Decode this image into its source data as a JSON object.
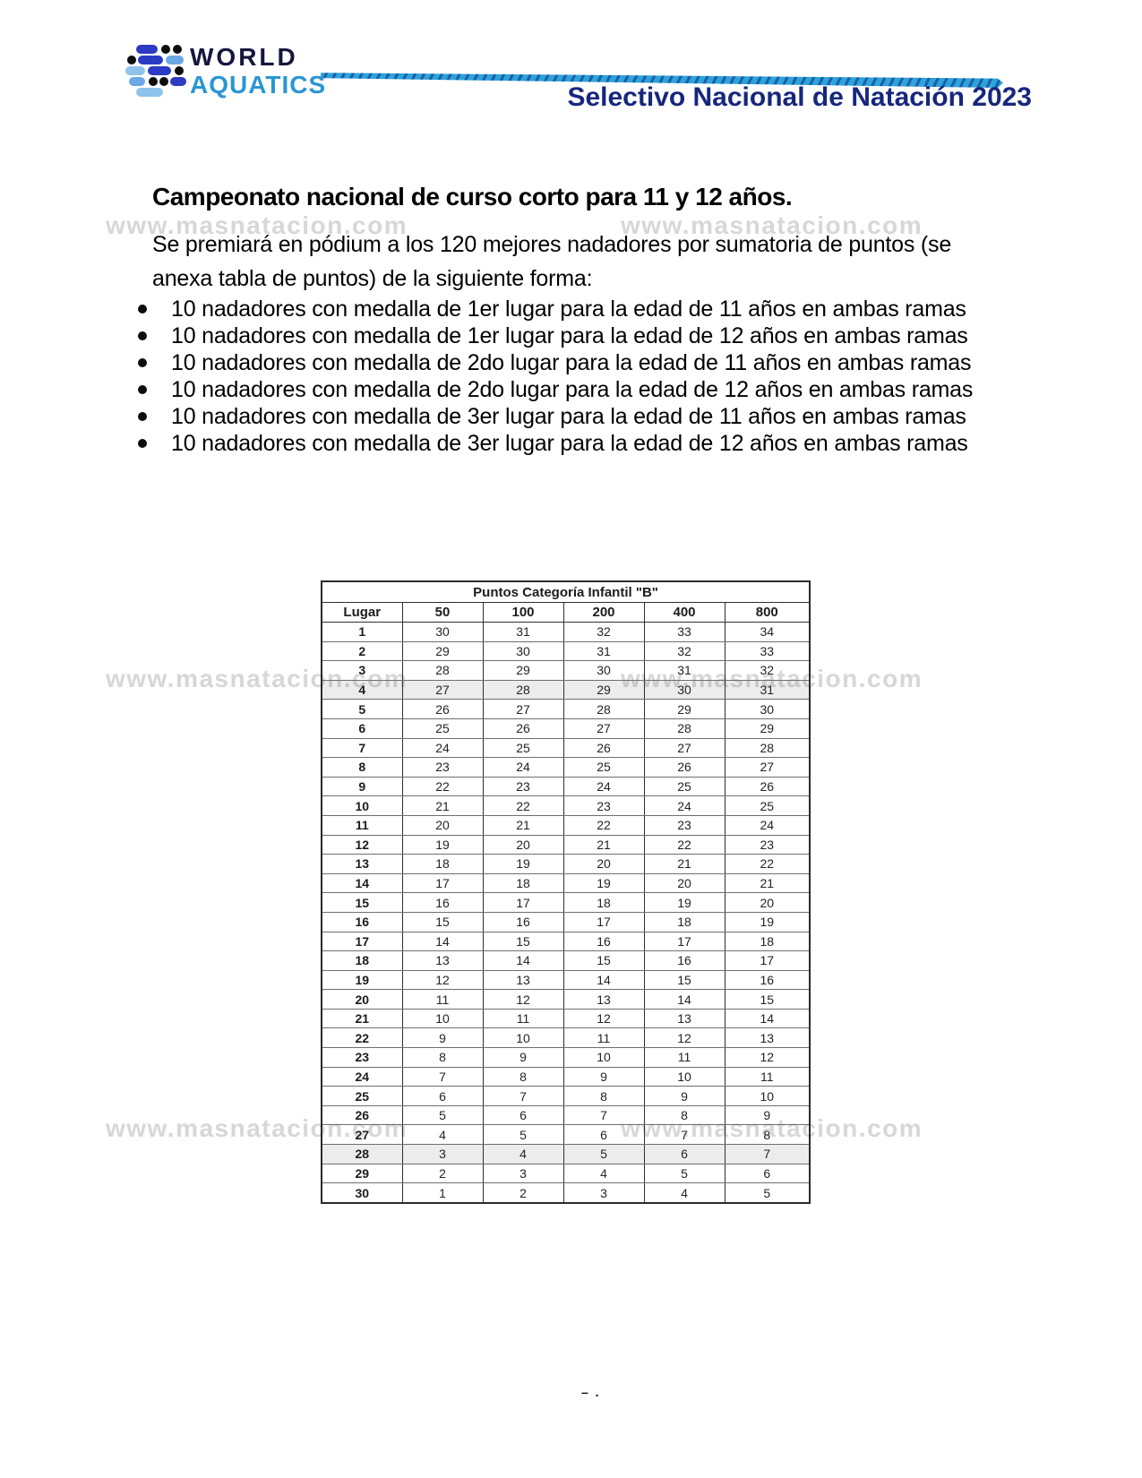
{
  "header": {
    "logo_word_1": "WORLD",
    "logo_word_2": "AQUATICS",
    "title": "Selectivo Nacional de Natación 2023"
  },
  "watermark": {
    "text": "www.masnatacion.com"
  },
  "document": {
    "heading": "Campeonato nacional de curso corto para 11 y 12 años.",
    "intro_lines": [
      "Se premiará en pódium a los 120 mejores nadadores por sumatoria de puntos (se",
      "anexa tabla de puntos) de la siguiente forma:"
    ],
    "bullets": [
      "10 nadadores con medalla de 1er lugar para la edad de 11 años en ambas ramas",
      "10 nadadores con medalla de 1er lugar para la edad de 12 años en ambas ramas",
      "10 nadadores con medalla de 2do lugar para la edad de 11 años en ambas ramas",
      "10 nadadores con medalla de 2do lugar para la edad de 12 años en ambas ramas",
      "10 nadadores con medalla de 3er lugar para la edad de 11 años en ambas ramas",
      "10 nadadores con medalla de 3er lugar para la edad de 12 años en ambas ramas"
    ],
    "footer_mark": "– ."
  },
  "table": {
    "title": "Puntos Categoría Infantil \"B\"",
    "columns": [
      "Lugar",
      "50",
      "100",
      "200",
      "400",
      "800"
    ],
    "shaded_rows": [
      4,
      28
    ],
    "rows": [
      [
        1,
        30,
        31,
        32,
        33,
        34
      ],
      [
        2,
        29,
        30,
        31,
        32,
        33
      ],
      [
        3,
        28,
        29,
        30,
        31,
        32
      ],
      [
        4,
        27,
        28,
        29,
        30,
        31
      ],
      [
        5,
        26,
        27,
        28,
        29,
        30
      ],
      [
        6,
        25,
        26,
        27,
        28,
        29
      ],
      [
        7,
        24,
        25,
        26,
        27,
        28
      ],
      [
        8,
        23,
        24,
        25,
        26,
        27
      ],
      [
        9,
        22,
        23,
        24,
        25,
        26
      ],
      [
        10,
        21,
        22,
        23,
        24,
        25
      ],
      [
        11,
        20,
        21,
        22,
        23,
        24
      ],
      [
        12,
        19,
        20,
        21,
        22,
        23
      ],
      [
        13,
        18,
        19,
        20,
        21,
        22
      ],
      [
        14,
        17,
        18,
        19,
        20,
        21
      ],
      [
        15,
        16,
        17,
        18,
        19,
        20
      ],
      [
        16,
        15,
        16,
        17,
        18,
        19
      ],
      [
        17,
        14,
        15,
        16,
        17,
        18
      ],
      [
        18,
        13,
        14,
        15,
        16,
        17
      ],
      [
        19,
        12,
        13,
        14,
        15,
        16
      ],
      [
        20,
        11,
        12,
        13,
        14,
        15
      ],
      [
        21,
        10,
        11,
        12,
        13,
        14
      ],
      [
        22,
        9,
        10,
        11,
        12,
        13
      ],
      [
        23,
        8,
        9,
        10,
        11,
        12
      ],
      [
        24,
        7,
        8,
        9,
        10,
        11
      ],
      [
        25,
        6,
        7,
        8,
        9,
        10
      ],
      [
        26,
        5,
        6,
        7,
        8,
        9
      ],
      [
        27,
        4,
        5,
        6,
        7,
        8
      ],
      [
        28,
        3,
        4,
        5,
        6,
        7
      ],
      [
        29,
        2,
        3,
        4,
        5,
        6
      ],
      [
        30,
        1,
        2,
        3,
        4,
        5
      ]
    ]
  },
  "colors": {
    "header_title_blue": "#17277d",
    "swoosh_cyan": "#2ba3dc",
    "swoosh_dark_blue": "#1e5ea5",
    "aquatics_blue": "#2996d4",
    "world_navy": "#15153d",
    "watermark_gray": "#d7d7d7"
  }
}
